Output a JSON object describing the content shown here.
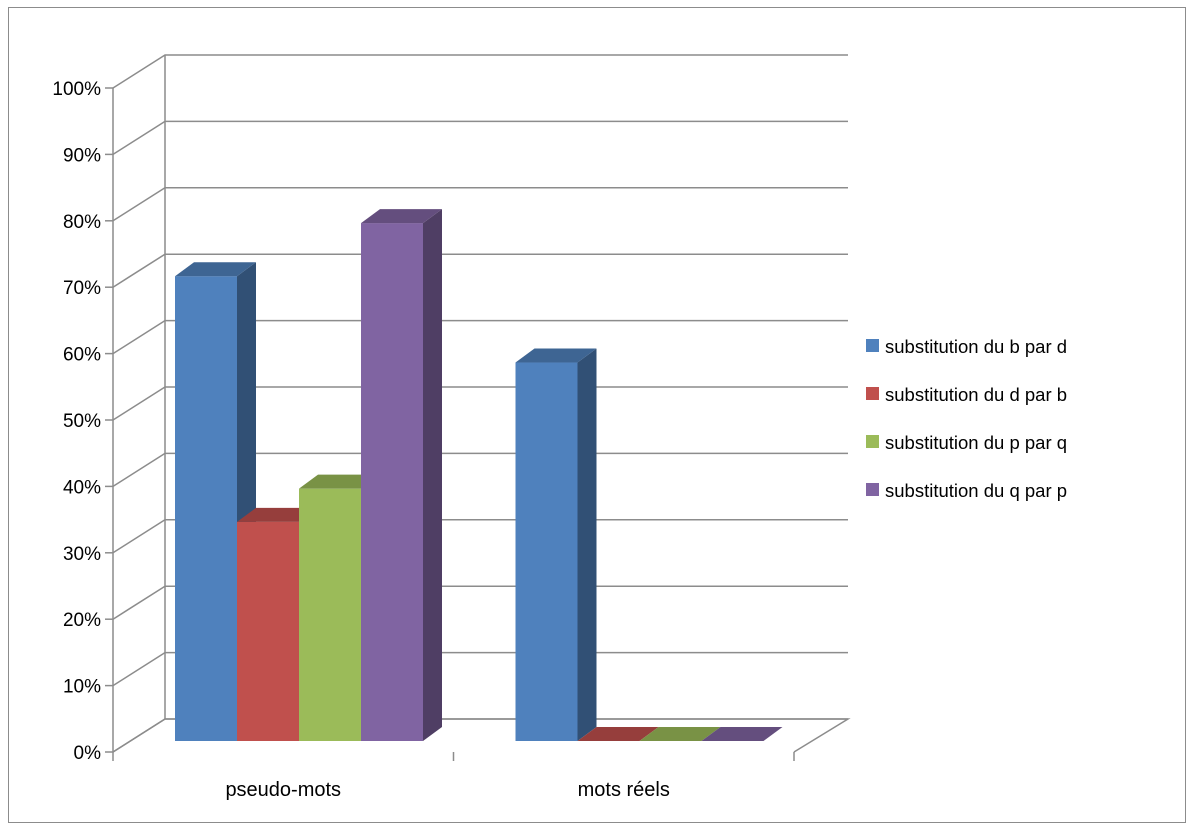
{
  "chart_data": {
    "type": "bar",
    "style": "3d-clustered-column",
    "categories": [
      "pseudo-mots",
      "mots réels"
    ],
    "series": [
      {
        "name": "substitution du b par d",
        "color": "#4F81BD",
        "values": [
          0.7,
          0.57
        ]
      },
      {
        "name": "substitution du d par b",
        "color": "#C0504D",
        "values": [
          0.33,
          0.0
        ]
      },
      {
        "name": "substitution du p par q",
        "color": "#9BBB59",
        "values": [
          0.38,
          0.0
        ]
      },
      {
        "name": "substitution du q par p",
        "color": "#8064A2",
        "values": [
          0.78,
          0.0
        ]
      }
    ],
    "yticks": [
      "0%",
      "10%",
      "20%",
      "30%",
      "40%",
      "50%",
      "60%",
      "70%",
      "80%",
      "90%",
      "100%"
    ],
    "ylim": [
      0,
      1
    ],
    "grid": true,
    "legend_position": "right"
  }
}
